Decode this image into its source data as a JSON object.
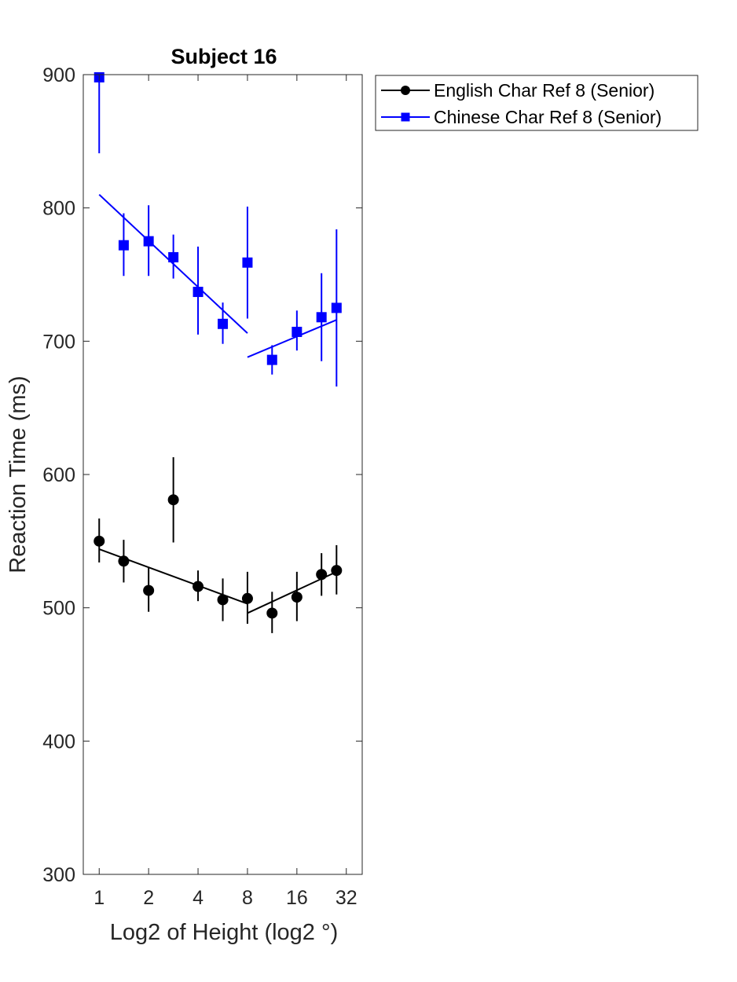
{
  "chart_data": {
    "type": "scatter",
    "title": "Subject 16",
    "xlabel": "Log2 of Height (log2 °)",
    "ylabel": "Reaction Time (ms)",
    "xscale": "log2",
    "xlim": [
      0.8,
      40
    ],
    "ylim": [
      300,
      900
    ],
    "xticks": [
      1,
      2,
      4,
      8,
      16,
      32
    ],
    "xticklabels": [
      "1",
      "2",
      "4",
      "8",
      "16",
      "32"
    ],
    "yticks": [
      300,
      400,
      500,
      600,
      700,
      800,
      900
    ],
    "yticklabels": [
      "300",
      "400",
      "500",
      "600",
      "700",
      "800",
      "900"
    ],
    "grid": false,
    "legend_position": "outside-top-right",
    "x": [
      1,
      1.41,
      2,
      2.83,
      4,
      5.66,
      8,
      11.3,
      16,
      22.6,
      27.9
    ],
    "series": [
      {
        "name": "English Char Ref 8 (Senior)",
        "color": "#000000",
        "marker": "circle",
        "values": [
          550,
          535,
          513,
          581,
          516,
          506,
          507,
          496,
          508,
          525,
          528
        ],
        "err_low": [
          534,
          519,
          497,
          549,
          505,
          490,
          488,
          481,
          490,
          509,
          510
        ],
        "err_high": [
          567,
          551,
          530,
          613,
          528,
          522,
          527,
          512,
          527,
          541,
          547
        ],
        "fit_segments": [
          {
            "x": [
              1,
              8
            ],
            "y": [
              544,
              503
            ]
          },
          {
            "x": [
              8,
              27.9
            ],
            "y": [
              496,
              527
            ]
          }
        ]
      },
      {
        "name": "Chinese Char Ref 8 (Senior)",
        "color": "#0000ff",
        "marker": "square",
        "values": [
          898,
          772,
          775,
          763,
          737,
          713,
          759,
          686,
          707,
          718,
          725
        ],
        "err_low": [
          841,
          749,
          749,
          747,
          705,
          698,
          717,
          675,
          693,
          685,
          666
        ],
        "err_high": [
          900,
          796,
          802,
          780,
          771,
          729,
          801,
          697,
          723,
          751,
          784
        ],
        "fit_segments": [
          {
            "x": [
              1,
              8
            ],
            "y": [
              810,
              706
            ]
          },
          {
            "x": [
              8,
              27.9
            ],
            "y": [
              688,
              716
            ]
          }
        ]
      }
    ]
  }
}
